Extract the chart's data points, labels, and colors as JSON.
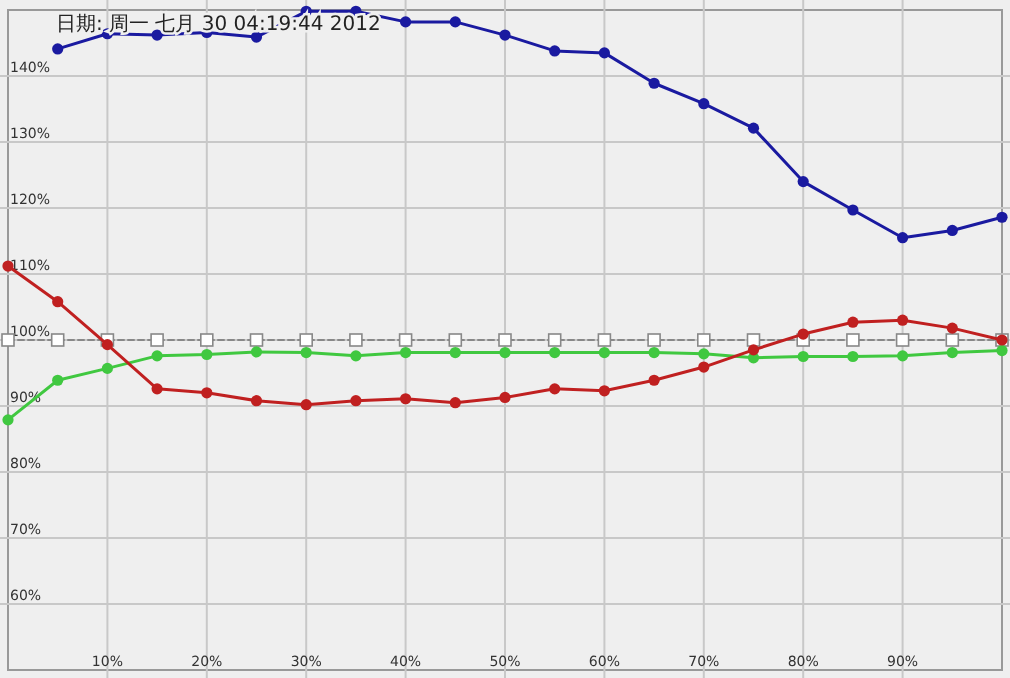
{
  "chart_data": {
    "type": "line",
    "annotations": [
      "日期: 周一 七月 30 04:19:44 2012"
    ],
    "x": [
      0,
      5,
      10,
      15,
      20,
      25,
      30,
      35,
      40,
      45,
      50,
      55,
      60,
      65,
      70,
      75,
      80,
      85,
      90,
      95,
      100
    ],
    "xlim": [
      0,
      100
    ],
    "ylim": [
      50,
      150
    ],
    "xticks": [
      {
        "value": 10,
        "label": "10%"
      },
      {
        "value": 20,
        "label": "20%"
      },
      {
        "value": 30,
        "label": "30%"
      },
      {
        "value": 40,
        "label": "40%"
      },
      {
        "value": 50,
        "label": "50%"
      },
      {
        "value": 60,
        "label": "60%"
      },
      {
        "value": 70,
        "label": "70%"
      },
      {
        "value": 80,
        "label": "80%"
      },
      {
        "value": 90,
        "label": "90%"
      }
    ],
    "yticks": [
      {
        "value": 60,
        "label": "60%"
      },
      {
        "value": 70,
        "label": "70%"
      },
      {
        "value": 80,
        "label": "80%"
      },
      {
        "value": 90,
        "label": "90%"
      },
      {
        "value": 100,
        "label": "100%"
      },
      {
        "value": 110,
        "label": "110%"
      },
      {
        "value": 120,
        "label": "120%"
      },
      {
        "value": 130,
        "label": "130%"
      },
      {
        "value": 140,
        "label": "140%"
      }
    ],
    "grid": true,
    "marker": "circle",
    "line_style": "solid",
    "series": [
      {
        "color": "#888888",
        "marker": "square",
        "line_style": "dashed",
        "values": [
          100,
          100,
          100,
          100,
          100,
          100,
          100,
          100,
          100,
          100,
          100,
          100,
          100,
          100,
          100,
          100,
          100,
          100,
          100,
          100,
          100
        ]
      },
      {
        "color": "#40c840",
        "values": [
          87.9,
          93.9,
          95.7,
          97.6,
          97.8,
          98.2,
          98.1,
          97.6,
          98.1,
          98.1,
          98.1,
          98.1,
          98.1,
          98.1,
          97.9,
          97.3,
          97.5,
          97.5,
          97.6,
          98.1,
          98.4
        ]
      },
      {
        "color": "#c02020",
        "values": [
          111.2,
          105.8,
          99.3,
          92.6,
          92.0,
          90.8,
          90.2,
          90.8,
          91.1,
          90.5,
          91.3,
          92.6,
          92.3,
          93.9,
          95.9,
          98.5,
          100.9,
          102.7,
          103.0,
          101.8,
          100
        ]
      },
      {
        "color": "#1a1aa0",
        "values": [
          null,
          144.1,
          146.4,
          146.2,
          146.6,
          145.9,
          149.8,
          149.8,
          148.2,
          148.2,
          146.2,
          143.8,
          143.5,
          138.9,
          135.8,
          132.1,
          124.0,
          119.7,
          115.5,
          116.6,
          118.6
        ]
      }
    ]
  }
}
